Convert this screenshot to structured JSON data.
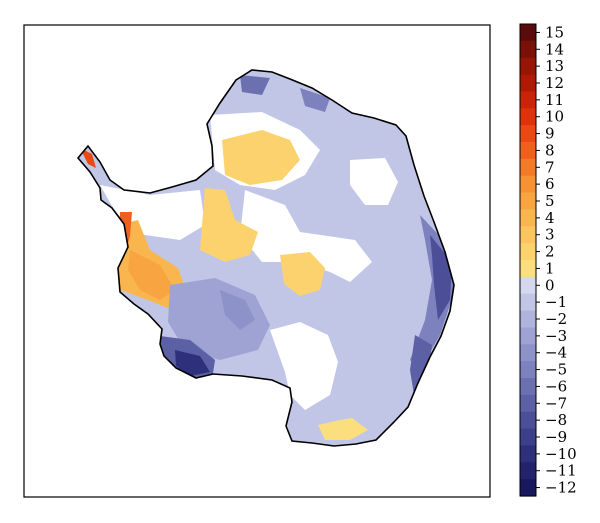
{
  "chart_data": {
    "type": "heatmap",
    "title": "",
    "xlabel": "",
    "ylabel": "",
    "colorbar": {
      "levels": [
        15,
        14,
        13,
        12,
        11,
        10,
        9,
        8,
        7,
        6,
        5,
        4,
        3,
        2,
        1,
        0,
        -1,
        -2,
        -3,
        -4,
        -5,
        -6,
        -7,
        -8,
        -9,
        -10,
        -11,
        -12
      ],
      "tick_labels": [
        "15",
        "14",
        "13",
        "12",
        "11",
        "10",
        "9",
        "8",
        "7",
        "6",
        "5",
        "4",
        "3",
        "2",
        "1",
        "0",
        "−1",
        "−2",
        "−3",
        "−4",
        "−5",
        "−6",
        "−7",
        "−8",
        "−9",
        "−10",
        "−11",
        "−12"
      ],
      "colors": [
        "#5a0c0c",
        "#7a1108",
        "#961505",
        "#b01a05",
        "#c92407",
        "#df320b",
        "#ea4914",
        "#ef601d",
        "#f37a28",
        "#f69234",
        "#f8a541",
        "#f9b64f",
        "#fac55e",
        "#fbd26d",
        "#fbde7d",
        "#d4d8ef",
        "#c1c6e7",
        "#afb4dd",
        "#9ea3d3",
        "#8d92c8",
        "#7d81bd",
        "#6c70b1",
        "#5c60a5",
        "#4c4f98",
        "#3c3f8a",
        "#2e307b",
        "#22236c",
        "#17185e"
      ]
    },
    "map_region": "Antarctica",
    "grid": false
  }
}
